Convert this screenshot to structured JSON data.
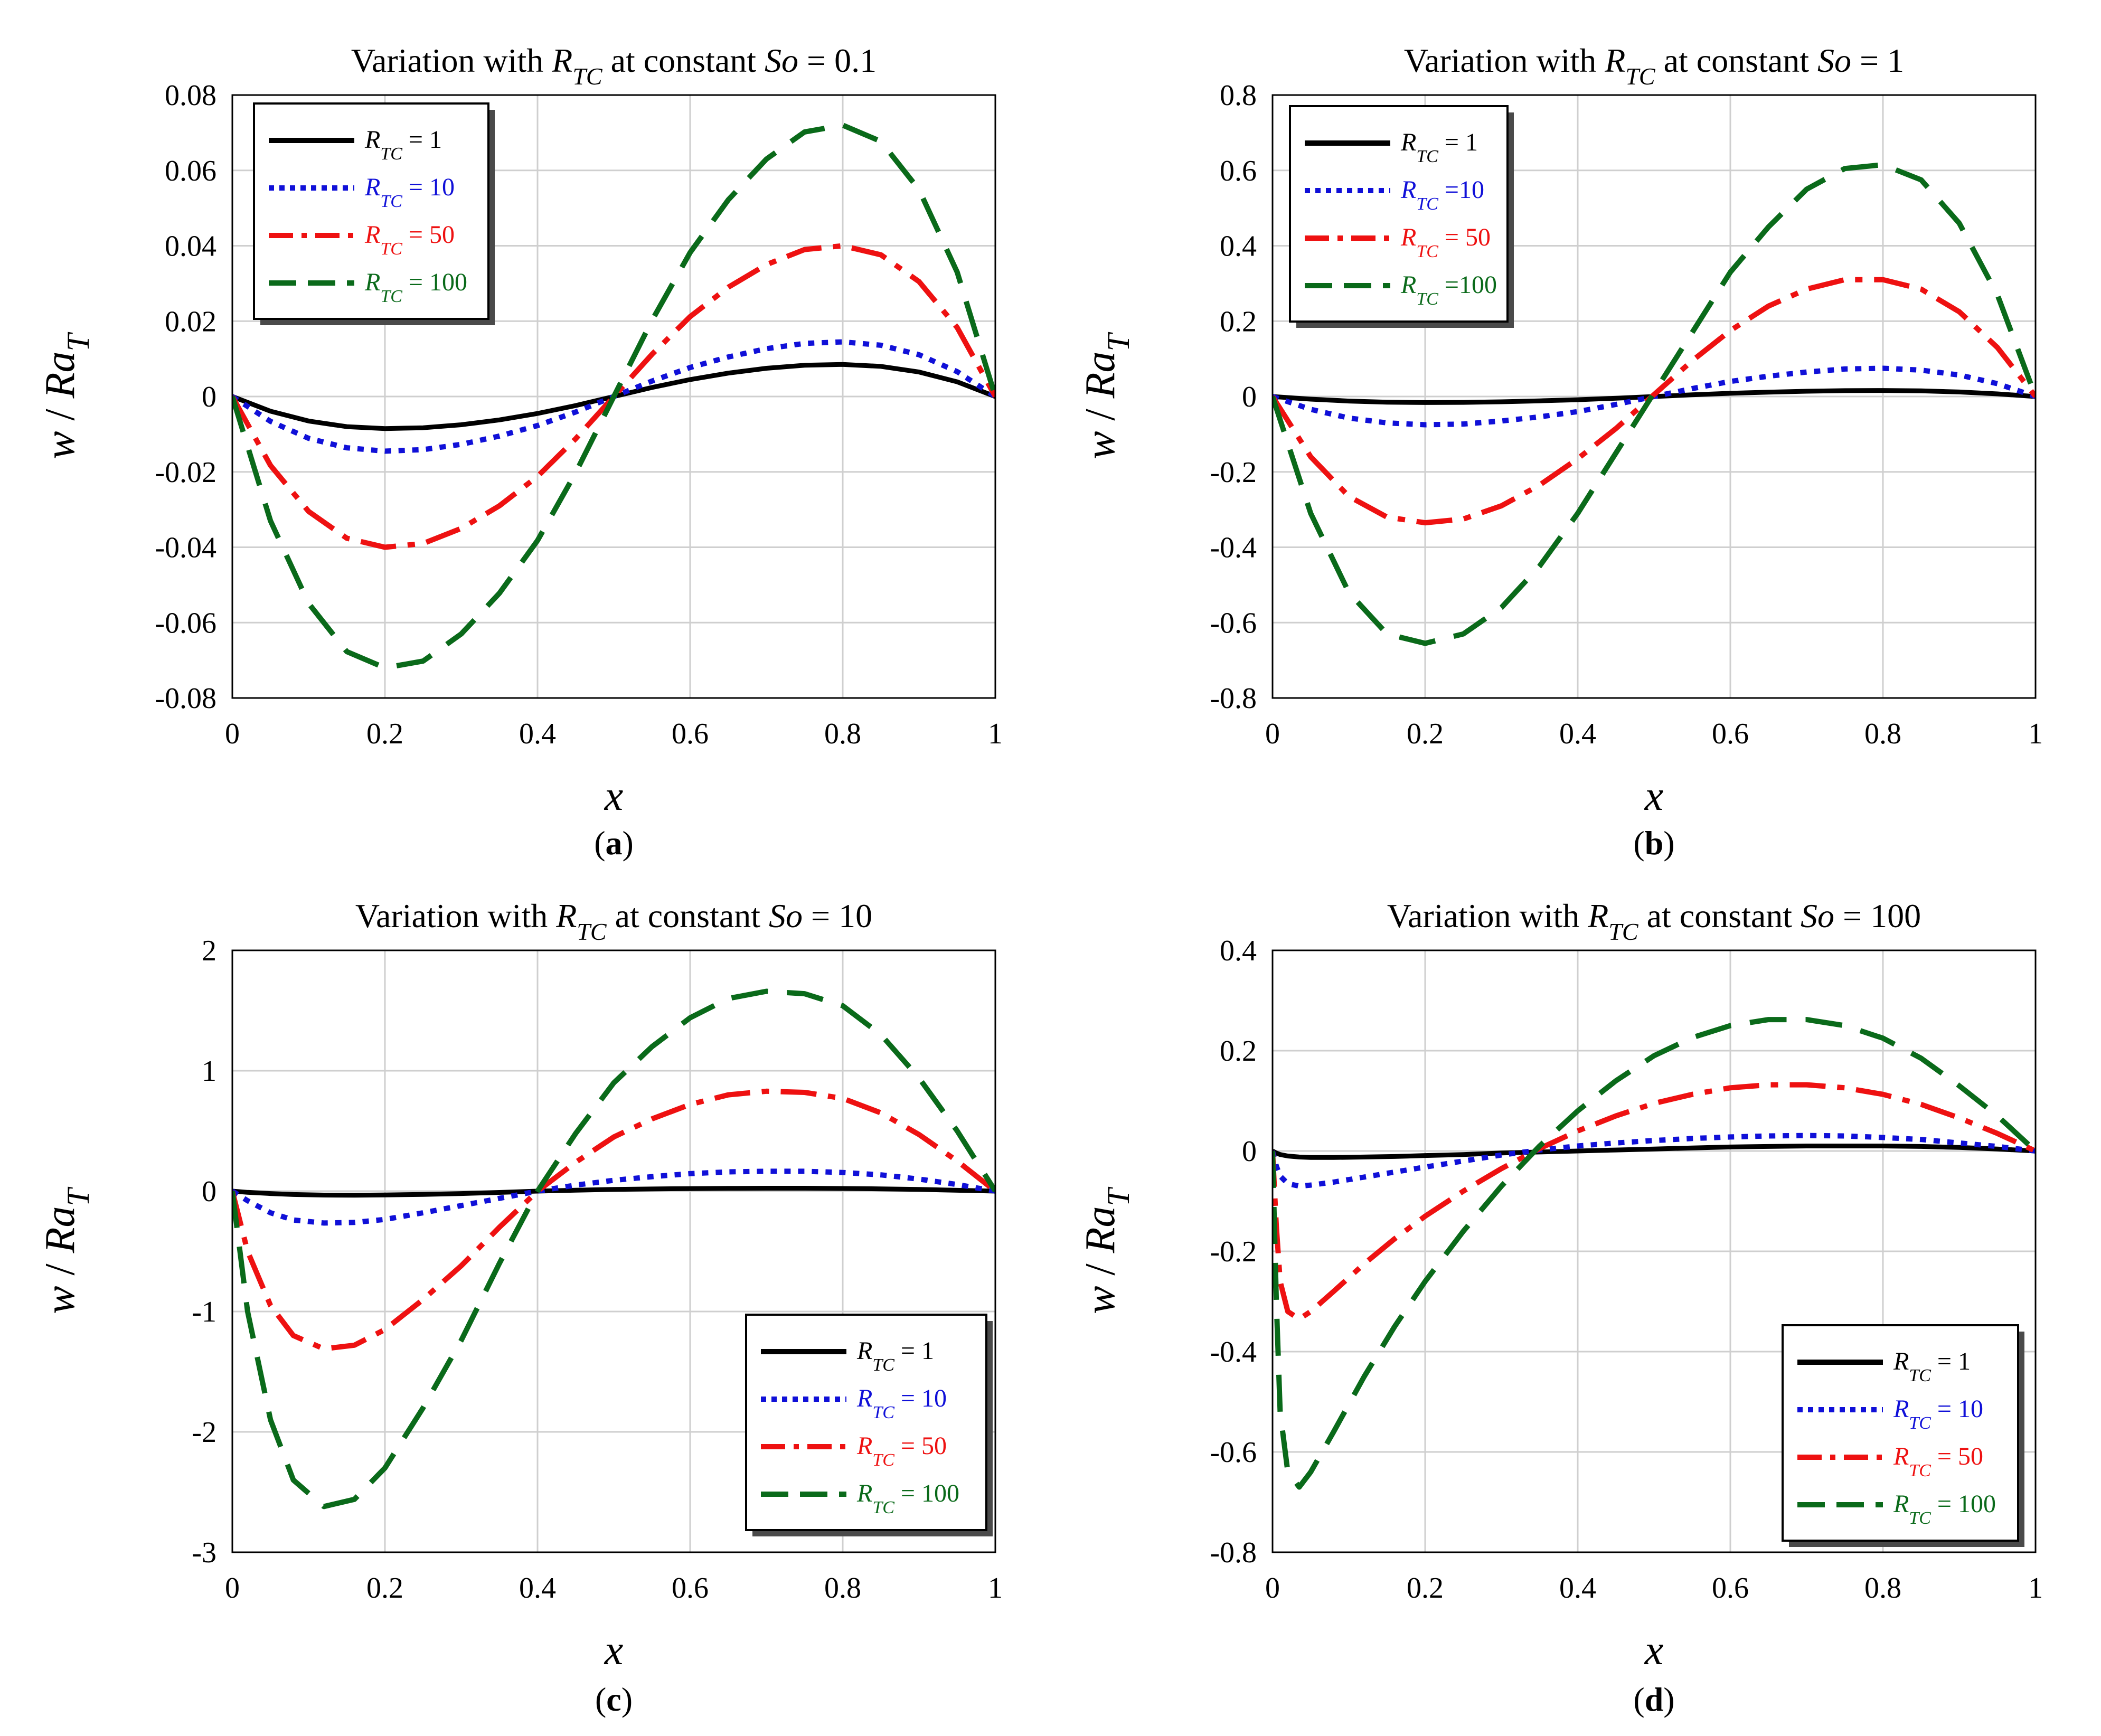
{
  "figure": {
    "subfigure_labels": [
      "a",
      "b",
      "c",
      "d"
    ]
  },
  "chart_data": [
    {
      "type": "line",
      "title": {
        "pre": "Variation with ",
        "var": "R",
        "sub": "TC",
        "mid": " at constant ",
        "param": "So",
        "post": " = 0.1"
      },
      "xlabel": "x",
      "ylabel": {
        "w": "w",
        "slash": " / ",
        "ra": "Ra",
        "sub": "T"
      },
      "xlim": [
        0,
        1
      ],
      "ylim": [
        -0.08,
        0.08
      ],
      "xticks": [
        0,
        0.2,
        0.4,
        0.6,
        0.8,
        1
      ],
      "xtick_labels": [
        "0",
        "0.2",
        "0.4",
        "0.6",
        "0.8",
        "1"
      ],
      "yticks": [
        -0.08,
        -0.06,
        -0.04,
        -0.02,
        0,
        0.02,
        0.04,
        0.06,
        0.08
      ],
      "ytick_labels": [
        "-0.08",
        "-0.06",
        "-0.04",
        "-0.02",
        "0",
        "0.02",
        "0.04",
        "0.06",
        "0.08"
      ],
      "grid": true,
      "legend_position": "top-left",
      "x": [
        0,
        0.05,
        0.1,
        0.15,
        0.2,
        0.25,
        0.3,
        0.35,
        0.4,
        0.45,
        0.5,
        0.55,
        0.6,
        0.65,
        0.7,
        0.75,
        0.8,
        0.85,
        0.9,
        0.95,
        1
      ],
      "series": [
        {
          "name": "R_TC = 1",
          "label": {
            "var": "R",
            "sub": "TC",
            "text": " = 1"
          },
          "color": "#000000",
          "dash": "solid",
          "values": [
            0,
            -0.0039,
            -0.0065,
            -0.008,
            -0.0085,
            -0.0083,
            -0.0075,
            -0.0062,
            -0.0045,
            -0.0024,
            0,
            0.0024,
            0.0045,
            0.0062,
            0.0075,
            0.0083,
            0.0085,
            0.008,
            0.0065,
            0.0039,
            0
          ]
        },
        {
          "name": "R_TC = 10",
          "label": {
            "var": "R",
            "sub": "TC",
            "text": " = 10"
          },
          "color": "#1010d8",
          "dash": "dot",
          "values": [
            0,
            -0.0066,
            -0.0111,
            -0.0136,
            -0.0145,
            -0.0141,
            -0.0127,
            -0.0105,
            -0.0077,
            -0.0041,
            0,
            0.0041,
            0.0077,
            0.0105,
            0.0127,
            0.0141,
            0.0145,
            0.0136,
            0.0111,
            0.0066,
            0
          ]
        },
        {
          "name": "R_TC = 50",
          "label": {
            "var": "R",
            "sub": "TC",
            "text": " = 50"
          },
          "color": "#ee1111",
          "dash": "dashdot",
          "values": [
            0,
            -0.0183,
            -0.0305,
            -0.0376,
            -0.04,
            -0.039,
            -0.035,
            -0.029,
            -0.0212,
            -0.0112,
            0,
            0.0112,
            0.0212,
            0.029,
            0.035,
            0.039,
            0.04,
            0.0376,
            0.0305,
            0.0183,
            0
          ]
        },
        {
          "name": "R_TC = 100",
          "label": {
            "var": "R",
            "sub": "TC",
            "text": " = 100"
          },
          "color": "#0a6a1a",
          "dash": "dash",
          "values": [
            0,
            -0.033,
            -0.0549,
            -0.0677,
            -0.072,
            -0.0702,
            -0.063,
            -0.0522,
            -0.0382,
            -0.0202,
            0,
            0.0202,
            0.0382,
            0.0522,
            0.063,
            0.0702,
            0.072,
            0.0677,
            0.0549,
            0.033,
            0
          ]
        }
      ]
    },
    {
      "type": "line",
      "title": {
        "pre": "Variation with ",
        "var": "R",
        "sub": "TC",
        "mid": " at constant ",
        "param": "So",
        "post": " = 1"
      },
      "xlabel": "x",
      "ylabel": {
        "w": "w",
        "slash": " / ",
        "ra": "Ra",
        "sub": "T"
      },
      "xlim": [
        0,
        1
      ],
      "ylim": [
        -0.8,
        0.8
      ],
      "xticks": [
        0,
        0.2,
        0.4,
        0.6,
        0.8,
        1
      ],
      "xtick_labels": [
        "0",
        "0.2",
        "0.4",
        "0.6",
        "0.8",
        "1"
      ],
      "yticks": [
        -0.8,
        -0.6,
        -0.4,
        -0.2,
        0,
        0.2,
        0.4,
        0.6,
        0.8
      ],
      "ytick_labels": [
        "-0.8",
        "-0.6",
        "-0.4",
        "-0.2",
        "0",
        "0.2",
        "0.4",
        "0.6",
        "0.8"
      ],
      "grid": true,
      "legend_position": "top-left",
      "x": [
        0,
        0.05,
        0.1,
        0.15,
        0.2,
        0.25,
        0.3,
        0.35,
        0.4,
        0.45,
        0.5,
        0.55,
        0.6,
        0.65,
        0.7,
        0.75,
        0.8,
        0.85,
        0.9,
        0.95,
        1
      ],
      "series": [
        {
          "name": "R_TC = 1",
          "label": {
            "var": "R",
            "sub": "TC",
            "text": " = 1"
          },
          "color": "#000000",
          "dash": "solid",
          "values": [
            0,
            -0.007,
            -0.012,
            -0.015,
            -0.016,
            -0.0155,
            -0.014,
            -0.0115,
            -0.0085,
            -0.0045,
            0,
            0.0045,
            0.0085,
            0.0115,
            0.014,
            0.0155,
            0.016,
            0.015,
            0.012,
            0.007,
            0
          ]
        },
        {
          "name": "R_TC = 10",
          "label": {
            "var": "R",
            "sub": "TC",
            "text": " =10"
          },
          "color": "#1010d8",
          "dash": "dot",
          "values": [
            0,
            -0.034,
            -0.057,
            -0.07,
            -0.075,
            -0.073,
            -0.065,
            -0.054,
            -0.04,
            -0.021,
            0,
            0.021,
            0.04,
            0.054,
            0.065,
            0.073,
            0.075,
            0.07,
            0.057,
            0.034,
            0
          ]
        },
        {
          "name": "R_TC = 50",
          "label": {
            "var": "R",
            "sub": "TC",
            "text": " = 50"
          },
          "color": "#ee1111",
          "dash": "dashdot",
          "values": [
            0,
            -0.16,
            -0.265,
            -0.32,
            -0.335,
            -0.325,
            -0.29,
            -0.235,
            -0.165,
            -0.085,
            0.005,
            0.095,
            0.175,
            0.24,
            0.285,
            0.31,
            0.31,
            0.285,
            0.225,
            0.13,
            0
          ]
        },
        {
          "name": "R_TC = 100",
          "label": {
            "var": "R",
            "sub": "TC",
            "text": " =100"
          },
          "color": "#0a6a1a",
          "dash": "dash",
          "values": [
            0,
            -0.31,
            -0.52,
            -0.63,
            -0.655,
            -0.63,
            -0.56,
            -0.45,
            -0.31,
            -0.15,
            0.01,
            0.17,
            0.33,
            0.45,
            0.55,
            0.605,
            0.615,
            0.575,
            0.46,
            0.27,
            0
          ]
        }
      ]
    },
    {
      "type": "line",
      "title": {
        "pre": "Variation with ",
        "var": "R",
        "sub": "TC",
        "mid": " at constant ",
        "param": "So",
        "post": " = 10"
      },
      "xlabel": "x",
      "ylabel": {
        "w": "w",
        "slash": " / ",
        "ra": "Ra",
        "sub": "T"
      },
      "xlim": [
        0,
        1
      ],
      "ylim": [
        -3,
        2
      ],
      "xticks": [
        0,
        0.2,
        0.4,
        0.6,
        0.8,
        1
      ],
      "xtick_labels": [
        "0",
        "0.2",
        "0.4",
        "0.6",
        "0.8",
        "1"
      ],
      "yticks": [
        -3,
        -2,
        -1,
        0,
        1,
        2
      ],
      "ytick_labels": [
        "-3",
        "-2",
        "-1",
        "0",
        "1",
        "2"
      ],
      "grid": true,
      "legend_position": "bottom-right",
      "x": [
        0,
        0.02,
        0.05,
        0.08,
        0.12,
        0.16,
        0.2,
        0.25,
        0.3,
        0.35,
        0.4,
        0.45,
        0.5,
        0.55,
        0.6,
        0.65,
        0.7,
        0.75,
        0.8,
        0.85,
        0.9,
        0.95,
        1
      ],
      "series": [
        {
          "name": "R_TC = 1",
          "label": {
            "var": "R",
            "sub": "TC",
            "text": " = 1"
          },
          "color": "#000000",
          "dash": "solid",
          "values": [
            0,
            -0.01,
            -0.02,
            -0.028,
            -0.033,
            -0.034,
            -0.032,
            -0.027,
            -0.02,
            -0.011,
            0,
            0.008,
            0.014,
            0.018,
            0.021,
            0.023,
            0.024,
            0.024,
            0.022,
            0.019,
            0.014,
            0.007,
            0
          ]
        },
        {
          "name": "R_TC = 10",
          "label": {
            "var": "R",
            "sub": "TC",
            "text": " = 10"
          },
          "color": "#1010d8",
          "dash": "dot",
          "values": [
            0,
            -0.08,
            -0.18,
            -0.24,
            -0.265,
            -0.26,
            -0.235,
            -0.18,
            -0.12,
            -0.06,
            0,
            0.05,
            0.09,
            0.12,
            0.145,
            0.16,
            0.165,
            0.165,
            0.155,
            0.135,
            0.1,
            0.055,
            0
          ]
        },
        {
          "name": "R_TC = 50",
          "label": {
            "var": "R",
            "sub": "TC",
            "text": " = 50"
          },
          "color": "#ee1111",
          "dash": "dashdot",
          "values": [
            0,
            -0.5,
            -0.95,
            -1.2,
            -1.31,
            -1.28,
            -1.15,
            -0.9,
            -0.62,
            -0.3,
            0,
            0.24,
            0.45,
            0.6,
            0.72,
            0.8,
            0.83,
            0.82,
            0.77,
            0.65,
            0.47,
            0.25,
            0
          ]
        },
        {
          "name": "R_TC = 100",
          "label": {
            "var": "R",
            "sub": "TC",
            "text": " = 100"
          },
          "color": "#0a6a1a",
          "dash": "dash",
          "values": [
            0,
            -1.0,
            -1.9,
            -2.4,
            -2.62,
            -2.56,
            -2.3,
            -1.8,
            -1.24,
            -0.6,
            0,
            0.48,
            0.9,
            1.2,
            1.44,
            1.6,
            1.66,
            1.64,
            1.54,
            1.3,
            0.94,
            0.5,
            0
          ]
        }
      ]
    },
    {
      "type": "line",
      "title": {
        "pre": "Variation with ",
        "var": "R",
        "sub": "TC",
        "mid": " at constant ",
        "param": "So",
        "post": " = 100"
      },
      "xlabel": "x",
      "ylabel": {
        "w": "w",
        "slash": " / ",
        "ra": "Ra",
        "sub": "T"
      },
      "xlim": [
        0,
        1
      ],
      "ylim": [
        -0.8,
        0.4
      ],
      "xticks": [
        0,
        0.2,
        0.4,
        0.6,
        0.8,
        1
      ],
      "xtick_labels": [
        "0",
        "0.2",
        "0.4",
        "0.6",
        "0.8",
        "1"
      ],
      "yticks": [
        -0.8,
        -0.6,
        -0.4,
        -0.2,
        0,
        0.2,
        0.4
      ],
      "ytick_labels": [
        "-0.8",
        "-0.6",
        "-0.4",
        "-0.2",
        "0",
        "0.2",
        "0.4"
      ],
      "grid": true,
      "legend_position": "bottom-right",
      "x": [
        0,
        0.005,
        0.01,
        0.02,
        0.035,
        0.05,
        0.08,
        0.12,
        0.16,
        0.2,
        0.25,
        0.3,
        0.35,
        0.4,
        0.45,
        0.5,
        0.55,
        0.6,
        0.65,
        0.7,
        0.75,
        0.8,
        0.85,
        0.9,
        0.95,
        1
      ],
      "series": [
        {
          "name": "R_TC = 1",
          "label": {
            "var": "R",
            "sub": "TC",
            "text": " = 1"
          },
          "color": "#000000",
          "dash": "solid",
          "values": [
            0,
            -0.004,
            -0.007,
            -0.01,
            -0.012,
            -0.013,
            -0.013,
            -0.012,
            -0.011,
            -0.009,
            -0.007,
            -0.004,
            -0.002,
            0,
            0.002,
            0.004,
            0.006,
            0.008,
            0.009,
            0.01,
            0.01,
            0.01,
            0.009,
            0.007,
            0.004,
            0
          ]
        },
        {
          "name": "R_TC = 10",
          "label": {
            "var": "R",
            "sub": "TC",
            "text": " = 10"
          },
          "color": "#1010d8",
          "dash": "dot",
          "values": [
            0,
            -0.03,
            -0.05,
            -0.065,
            -0.07,
            -0.068,
            -0.062,
            -0.052,
            -0.042,
            -0.032,
            -0.02,
            -0.008,
            0.002,
            0.01,
            0.016,
            0.021,
            0.025,
            0.028,
            0.03,
            0.031,
            0.03,
            0.027,
            0.023,
            0.016,
            0.009,
            0
          ]
        },
        {
          "name": "R_TC = 50",
          "label": {
            "var": "R",
            "sub": "TC",
            "text": " = 50"
          },
          "color": "#ee1111",
          "dash": "dashdot",
          "values": [
            0,
            -0.15,
            -0.26,
            -0.32,
            -0.335,
            -0.32,
            -0.28,
            -0.225,
            -0.175,
            -0.13,
            -0.08,
            -0.035,
            0.005,
            0.04,
            0.07,
            0.095,
            0.113,
            0.126,
            0.132,
            0.132,
            0.126,
            0.113,
            0.093,
            0.066,
            0.035,
            0
          ]
        },
        {
          "name": "R_TC = 100",
          "label": {
            "var": "R",
            "sub": "TC",
            "text": " = 100"
          },
          "color": "#0a6a1a",
          "dash": "dash",
          "values": [
            0,
            -0.3,
            -0.52,
            -0.64,
            -0.67,
            -0.64,
            -0.56,
            -0.45,
            -0.35,
            -0.26,
            -0.16,
            -0.07,
            0.01,
            0.08,
            0.14,
            0.19,
            0.226,
            0.25,
            0.262,
            0.262,
            0.25,
            0.225,
            0.185,
            0.13,
            0.07,
            0
          ]
        }
      ]
    }
  ]
}
